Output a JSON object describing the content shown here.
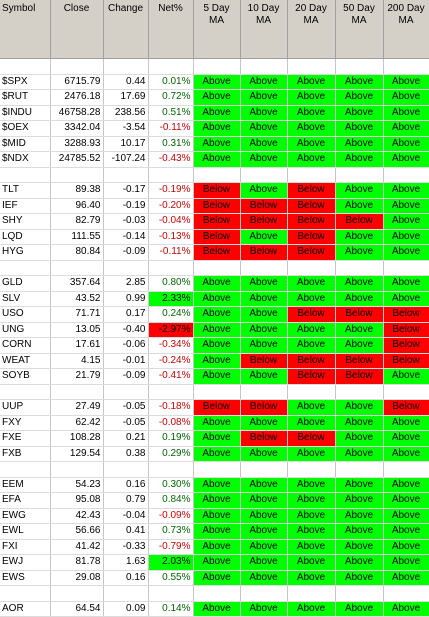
{
  "headers": [
    "Symbol",
    "Close",
    "Change",
    "Net%",
    "5 Day MA",
    "10 Day MA",
    "20 Day MA",
    "50 Day MA",
    "200 Day MA"
  ],
  "header_lines": [
    [
      "Symbol"
    ],
    [
      "Close"
    ],
    [
      "Change"
    ],
    [
      "Net%"
    ],
    [
      "5 Day",
      "MA"
    ],
    [
      "10 Day",
      "MA"
    ],
    [
      "20 Day",
      "MA"
    ],
    [
      "50 Day",
      "MA"
    ],
    [
      "200 Day",
      "MA"
    ]
  ],
  "colors": {
    "above": "#00ff00",
    "below": "#ff0000",
    "header_bg": "#d4d0c8",
    "net_pos": "#006600",
    "net_neg": "#cc0000"
  },
  "rows": [
    {
      "blank": true
    },
    {
      "symbol": "$SPX",
      "close": "6715.79",
      "change": "0.44",
      "net": "0.01%",
      "ma": [
        "Above",
        "Above",
        "Above",
        "Above",
        "Above"
      ]
    },
    {
      "symbol": "$RUT",
      "close": "2476.18",
      "change": "17.69",
      "net": "0.72%",
      "ma": [
        "Above",
        "Above",
        "Above",
        "Above",
        "Above"
      ]
    },
    {
      "symbol": "$INDU",
      "close": "46758.28",
      "change": "238.56",
      "net": "0.51%",
      "ma": [
        "Above",
        "Above",
        "Above",
        "Above",
        "Above"
      ]
    },
    {
      "symbol": "$OEX",
      "close": "3342.04",
      "change": "-3.54",
      "net": "-0.11%",
      "ma": [
        "Above",
        "Above",
        "Above",
        "Above",
        "Above"
      ]
    },
    {
      "symbol": "$MID",
      "close": "3288.93",
      "change": "10.17",
      "net": "0.31%",
      "ma": [
        "Above",
        "Above",
        "Above",
        "Above",
        "Above"
      ]
    },
    {
      "symbol": "$NDX",
      "close": "24785.52",
      "change": "-107.24",
      "net": "-0.43%",
      "ma": [
        "Above",
        "Above",
        "Above",
        "Above",
        "Above"
      ]
    },
    {
      "blank": true
    },
    {
      "symbol": "TLT",
      "close": "89.38",
      "change": "-0.17",
      "net": "-0.19%",
      "ma": [
        "Below",
        "Above",
        "Below",
        "Above",
        "Above"
      ]
    },
    {
      "symbol": "IEF",
      "close": "96.40",
      "change": "-0.19",
      "net": "-0.20%",
      "ma": [
        "Below",
        "Below",
        "Below",
        "Above",
        "Above"
      ]
    },
    {
      "symbol": "SHY",
      "close": "82.79",
      "change": "-0.03",
      "net": "-0.04%",
      "ma": [
        "Below",
        "Below",
        "Below",
        "Below",
        "Above"
      ]
    },
    {
      "symbol": "LQD",
      "close": "111.55",
      "change": "-0.14",
      "net": "-0.13%",
      "ma": [
        "Below",
        "Above",
        "Below",
        "Above",
        "Above"
      ]
    },
    {
      "symbol": "HYG",
      "close": "80.84",
      "change": "-0.09",
      "net": "-0.11%",
      "ma": [
        "Below",
        "Below",
        "Below",
        "Above",
        "Above"
      ]
    },
    {
      "blank": true
    },
    {
      "symbol": "GLD",
      "close": "357.64",
      "change": "2.85",
      "net": "0.80%",
      "ma": [
        "Above",
        "Above",
        "Above",
        "Above",
        "Above"
      ]
    },
    {
      "symbol": "SLV",
      "close": "43.52",
      "change": "0.99",
      "net": "2.33%",
      "net_hl": "pos",
      "ma": [
        "Above",
        "Above",
        "Above",
        "Above",
        "Above"
      ]
    },
    {
      "symbol": "USO",
      "close": "71.71",
      "change": "0.17",
      "net": "0.24%",
      "ma": [
        "Above",
        "Above",
        "Below",
        "Below",
        "Below"
      ]
    },
    {
      "symbol": "UNG",
      "close": "13.05",
      "change": "-0.40",
      "net": "-2.97%",
      "net_hl": "neg",
      "ma": [
        "Above",
        "Above",
        "Above",
        "Above",
        "Below"
      ]
    },
    {
      "symbol": "CORN",
      "close": "17.61",
      "change": "-0.06",
      "net": "-0.34%",
      "ma": [
        "Above",
        "Above",
        "Above",
        "Above",
        "Below"
      ]
    },
    {
      "symbol": "WEAT",
      "close": "4.15",
      "change": "-0.01",
      "net": "-0.24%",
      "ma": [
        "Above",
        "Below",
        "Below",
        "Below",
        "Below"
      ]
    },
    {
      "symbol": "SOYB",
      "close": "21.79",
      "change": "-0.09",
      "net": "-0.41%",
      "ma": [
        "Above",
        "Above",
        "Below",
        "Below",
        "Above"
      ]
    },
    {
      "blank": true
    },
    {
      "symbol": "UUP",
      "close": "27.49",
      "change": "-0.05",
      "net": "-0.18%",
      "ma": [
        "Below",
        "Below",
        "Above",
        "Above",
        "Below"
      ]
    },
    {
      "symbol": "FXY",
      "close": "62.42",
      "change": "-0.05",
      "net": "-0.08%",
      "ma": [
        "Above",
        "Above",
        "Above",
        "Above",
        "Above"
      ]
    },
    {
      "symbol": "FXE",
      "close": "108.28",
      "change": "0.21",
      "net": "0.19%",
      "ma": [
        "Above",
        "Below",
        "Below",
        "Above",
        "Above"
      ]
    },
    {
      "symbol": "FXB",
      "close": "129.54",
      "change": "0.38",
      "net": "0.29%",
      "ma": [
        "Above",
        "Above",
        "Above",
        "Above",
        "Above"
      ]
    },
    {
      "blank": true
    },
    {
      "symbol": "EEM",
      "close": "54.23",
      "change": "0.16",
      "net": "0.30%",
      "ma": [
        "Above",
        "Above",
        "Above",
        "Above",
        "Above"
      ]
    },
    {
      "symbol": "EFA",
      "close": "95.08",
      "change": "0.79",
      "net": "0.84%",
      "ma": [
        "Above",
        "Above",
        "Above",
        "Above",
        "Above"
      ]
    },
    {
      "symbol": "EWG",
      "close": "42.43",
      "change": "-0.04",
      "net": "-0.09%",
      "ma": [
        "Above",
        "Above",
        "Above",
        "Above",
        "Above"
      ]
    },
    {
      "symbol": "EWL",
      "close": "56.66",
      "change": "0.41",
      "net": "0.73%",
      "ma": [
        "Above",
        "Above",
        "Above",
        "Above",
        "Above"
      ]
    },
    {
      "symbol": "FXI",
      "close": "41.42",
      "change": "-0.33",
      "net": "-0.79%",
      "ma": [
        "Above",
        "Above",
        "Above",
        "Above",
        "Above"
      ]
    },
    {
      "symbol": "EWJ",
      "close": "81.78",
      "change": "1.63",
      "net": "2.03%",
      "net_hl": "pos",
      "ma": [
        "Above",
        "Above",
        "Above",
        "Above",
        "Above"
      ]
    },
    {
      "symbol": "EWS",
      "close": "29.08",
      "change": "0.16",
      "net": "0.55%",
      "ma": [
        "Above",
        "Above",
        "Above",
        "Above",
        "Above"
      ]
    },
    {
      "blank": true
    },
    {
      "symbol": "AOR",
      "close": "64.54",
      "change": "0.09",
      "net": "0.14%",
      "ma": [
        "Above",
        "Above",
        "Above",
        "Above",
        "Above"
      ]
    }
  ]
}
